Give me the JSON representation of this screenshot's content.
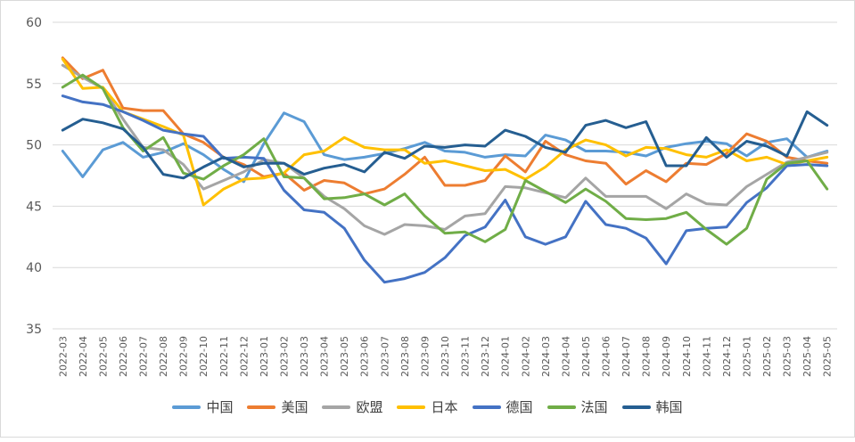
{
  "chart_data": {
    "type": "line",
    "title": "",
    "xlabel": "",
    "ylabel": "",
    "ylim": [
      35,
      60
    ],
    "yticks": [
      "35",
      "40",
      "45",
      "50",
      "55",
      "60"
    ],
    "grid": true,
    "legend": "bottom",
    "categories": [
      "2022-03",
      "2022-04",
      "2022-05",
      "2022-06",
      "2022-07",
      "2022-08",
      "2022-09",
      "2022-10",
      "2022-11",
      "2022-12",
      "2023-01",
      "2023-02",
      "2023-03",
      "2023-04",
      "2023-05",
      "2023-06",
      "2023-07",
      "2023-08",
      "2023-09",
      "2023-10",
      "2023-11",
      "2023-12",
      "2024-01",
      "2024-02",
      "2024-03",
      "2024-04",
      "2024-05",
      "2024-06",
      "2024-07",
      "2024-08",
      "2024-09",
      "2024-10",
      "2024-11",
      "2024-12",
      "2025-01",
      "2025-02",
      "2025-03",
      "2025-04",
      "2025-05"
    ],
    "series": [
      {
        "name": "中国",
        "color": "#5b9bd5",
        "values": [
          49.5,
          47.4,
          49.6,
          50.2,
          49.0,
          49.4,
          50.1,
          49.2,
          48.0,
          47.0,
          50.1,
          52.6,
          51.9,
          49.2,
          48.8,
          49.0,
          49.3,
          49.7,
          50.2,
          49.5,
          49.4,
          49.0,
          49.2,
          49.1,
          50.8,
          50.4,
          49.5,
          49.5,
          49.4,
          49.1,
          49.8,
          50.1,
          50.3,
          50.1,
          49.1,
          50.2,
          50.5,
          49.0,
          49.5
        ]
      },
      {
        "name": "美国",
        "color": "#ed7d31",
        "values": [
          57.1,
          55.4,
          56.1,
          53.0,
          52.8,
          52.8,
          50.9,
          50.2,
          49.0,
          48.4,
          47.4,
          47.7,
          46.3,
          47.1,
          46.9,
          46.0,
          46.4,
          47.6,
          49.0,
          46.7,
          46.7,
          47.1,
          49.1,
          47.8,
          50.3,
          49.2,
          48.7,
          48.5,
          46.8,
          47.9,
          47.0,
          48.5,
          48.4,
          49.3,
          50.9,
          50.3,
          49.0,
          48.7,
          48.5
        ]
      },
      {
        "name": "欧盟",
        "color": "#a5a5a5",
        "values": [
          56.5,
          55.5,
          54.6,
          52.1,
          49.8,
          49.6,
          48.4,
          46.4,
          47.1,
          47.8,
          48.8,
          48.5,
          47.3,
          45.8,
          44.8,
          43.4,
          42.7,
          43.5,
          43.4,
          43.1,
          44.2,
          44.4,
          46.6,
          46.5,
          46.1,
          45.7,
          47.3,
          45.8,
          45.8,
          45.8,
          44.8,
          46.0,
          45.2,
          45.1,
          46.6,
          47.6,
          48.6,
          49.0,
          49.4
        ]
      },
      {
        "name": "日本",
        "color": "#ffc000",
        "values": [
          57.0,
          54.6,
          54.7,
          52.7,
          52.1,
          51.5,
          50.8,
          45.1,
          46.4,
          47.2,
          47.3,
          47.7,
          49.2,
          49.5,
          50.6,
          49.8,
          49.6,
          49.6,
          48.5,
          48.7,
          48.3,
          47.9,
          48.0,
          47.2,
          48.2,
          49.6,
          50.4,
          50.0,
          49.1,
          49.8,
          49.7,
          49.2,
          49.0,
          49.6,
          48.7,
          49.0,
          48.4,
          48.7,
          49.0
        ]
      },
      {
        "name": "德国",
        "color": "#4472c4",
        "values": [
          54.0,
          53.5,
          53.3,
          52.7,
          52.0,
          51.2,
          50.9,
          50.7,
          48.9,
          49.0,
          48.9,
          46.3,
          44.7,
          44.5,
          43.2,
          40.6,
          38.8,
          39.1,
          39.6,
          40.8,
          42.6,
          43.3,
          45.5,
          42.5,
          41.9,
          42.5,
          45.4,
          43.5,
          43.2,
          42.4,
          40.3,
          43.0,
          43.2,
          43.3,
          45.3,
          46.5,
          48.3,
          48.4,
          48.3
        ]
      },
      {
        "name": "法国",
        "color": "#70ad47",
        "values": [
          54.7,
          55.7,
          54.6,
          51.4,
          49.5,
          50.6,
          47.7,
          47.2,
          48.3,
          49.2,
          50.5,
          47.4,
          47.3,
          45.6,
          45.7,
          46.0,
          45.1,
          46.0,
          44.2,
          42.8,
          42.9,
          42.1,
          43.1,
          47.1,
          46.2,
          45.3,
          46.4,
          45.4,
          44.0,
          43.9,
          44.0,
          44.5,
          43.1,
          41.9,
          43.2,
          47.2,
          48.5,
          48.7,
          46.4
        ]
      },
      {
        "name": "韩国",
        "color": "#255e91",
        "values": [
          51.2,
          52.1,
          51.8,
          51.3,
          49.8,
          47.6,
          47.3,
          48.2,
          49.0,
          48.2,
          48.5,
          48.5,
          47.6,
          48.1,
          48.4,
          47.8,
          49.4,
          48.9,
          49.9,
          49.8,
          50.0,
          49.9,
          51.2,
          50.7,
          49.8,
          49.4,
          51.6,
          52.0,
          51.4,
          51.9,
          48.3,
          48.3,
          50.6,
          49.0,
          50.3,
          49.9,
          49.1,
          52.7,
          51.6
        ]
      }
    ]
  }
}
